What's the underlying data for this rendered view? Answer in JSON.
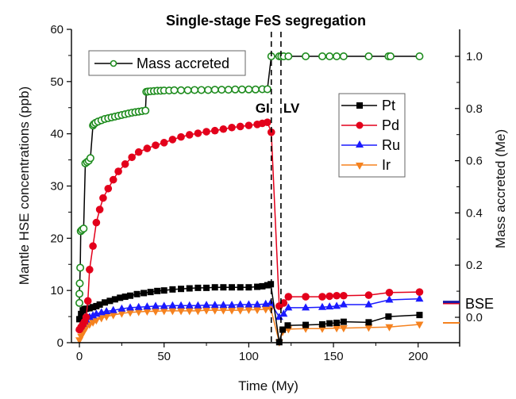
{
  "chart_data": {
    "type": "line",
    "title": "Single-stage FeS segregation",
    "xlabel": "Time (My)",
    "ylabel": "Mantle HSE concentrations (ppb)",
    "y2label": "Mass accreted (Me)",
    "xlim": [
      -4.7,
      224.5
    ],
    "ylim": [
      0,
      60
    ],
    "y2lim": [
      -0.11,
      1.1
    ],
    "xticks": [
      0,
      50,
      100,
      150,
      200
    ],
    "xminor": [
      25,
      75,
      125,
      175
    ],
    "yticks": [
      0,
      10,
      20,
      30,
      40,
      50,
      60
    ],
    "yminor": [
      5,
      15,
      25,
      35,
      45,
      55
    ],
    "y2ticks": [
      "0.0",
      "0.2",
      "0.4",
      "0.6",
      "0.8",
      "1.0"
    ],
    "y2tick_values": [
      0,
      0.2,
      0.4,
      0.6,
      0.8,
      1.0
    ],
    "y2minor": [
      0.1,
      0.3,
      0.5,
      0.7,
      0.9
    ],
    "grid": false,
    "vlines": [
      {
        "x": 113.3,
        "label": "GI"
      },
      {
        "x": 119.0,
        "label": "LV"
      }
    ],
    "legend_mass": {
      "label": "Mass accreted",
      "placement": "top-left"
    },
    "legend_hse": {
      "placement": "right",
      "entries": [
        "Pt",
        "Pd",
        "Ru",
        "Ir"
      ]
    },
    "bse": {
      "label": "BSE",
      "markers": [
        {
          "element": "Pd",
          "value": 7.6,
          "color": "#e3001b"
        },
        {
          "element": "Ru",
          "value": 7.8,
          "color": "#1a1aa6"
        },
        {
          "element": "Ir",
          "value": 3.8,
          "color": "#f5821f"
        }
      ]
    },
    "series": [
      {
        "name": "Mass accreted",
        "axis": "right",
        "color": "#1e8c1e",
        "line_color": "#000000",
        "marker": "open-circle",
        "x": [
          0,
          0,
          0.2,
          0.5,
          0.8,
          1.5,
          2.5,
          3.5,
          4.5,
          5.5,
          6.5,
          8,
          8.5,
          9.5,
          11,
          13,
          15,
          17,
          19,
          21,
          23,
          25,
          27,
          29,
          31,
          33,
          35,
          37,
          39,
          39.5,
          40.5,
          42,
          44,
          46,
          48,
          50,
          53,
          56,
          60,
          64,
          68,
          72,
          76,
          80,
          84,
          88,
          92,
          96,
          100,
          104,
          108,
          111,
          113.3,
          118,
          119.2,
          120.6,
          123.4,
          133.6,
          143.4,
          147.7,
          151.9,
          156,
          170.8,
          182.5,
          183.7,
          200.8
        ],
        "values": [
          0.055,
          0.09,
          0.13,
          0.19,
          0.33,
          0.335,
          0.34,
          0.59,
          0.595,
          0.6,
          0.61,
          0.735,
          0.74,
          0.745,
          0.75,
          0.755,
          0.76,
          0.763,
          0.766,
          0.769,
          0.772,
          0.775,
          0.778,
          0.781,
          0.784,
          0.786,
          0.788,
          0.79,
          0.792,
          0.864,
          0.865,
          0.866,
          0.867,
          0.868,
          0.868,
          0.869,
          0.869,
          0.87,
          0.87,
          0.87,
          0.871,
          0.871,
          0.871,
          0.872,
          0.872,
          0.872,
          0.873,
          0.873,
          0.873,
          0.873,
          0.874,
          0.874,
          1.0,
          1.0,
          1.0,
          1.0,
          1.0,
          1.0,
          1.0,
          1.0,
          1.0,
          1.0,
          1.0,
          1.0,
          1.0,
          1.0
        ]
      },
      {
        "name": "Pt",
        "axis": "left",
        "color": "#000000",
        "marker": "square",
        "x": [
          0,
          1,
          2,
          3,
          4,
          6,
          8,
          10,
          12,
          15,
          18,
          21,
          24,
          27,
          30,
          34,
          38,
          42,
          46,
          50,
          55,
          60,
          65,
          70,
          75,
          80,
          85,
          90,
          95,
          100,
          105,
          108,
          111,
          113,
          118,
          120,
          123,
          133.6,
          143.4,
          147.7,
          151.9,
          156,
          170.8,
          182.5,
          200.8
        ],
        "values": [
          4.5,
          5.5,
          6.2,
          6.4,
          6.5,
          6.6,
          6.8,
          7.0,
          7.3,
          7.7,
          8.0,
          8.3,
          8.6,
          8.8,
          9.0,
          9.3,
          9.5,
          9.7,
          9.9,
          10.0,
          10.2,
          10.3,
          10.4,
          10.5,
          10.5,
          10.6,
          10.6,
          10.6,
          10.6,
          10.6,
          10.7,
          10.8,
          11.0,
          11.2,
          0.1,
          2.5,
          3.3,
          3.4,
          3.5,
          3.7,
          3.8,
          4.0,
          3.9,
          5.0,
          5.3
        ]
      },
      {
        "name": "Pd",
        "axis": "left",
        "color": "#e3001b",
        "marker": "circle",
        "x": [
          0,
          1,
          2,
          3,
          4,
          5,
          6,
          8,
          10,
          12,
          14,
          17,
          20,
          23,
          27,
          31,
          35,
          40,
          45,
          50,
          55,
          60,
          65,
          70,
          75,
          80,
          85,
          90,
          95,
          100,
          105,
          108,
          111,
          113.3,
          118,
          120.6,
          123.4,
          133.6,
          143.4,
          147.7,
          151.9,
          156,
          170.8,
          183,
          200.8
        ],
        "values": [
          2.5,
          3.0,
          3.5,
          4.0,
          4.9,
          8.0,
          14.0,
          18.5,
          23.0,
          25.5,
          27.7,
          29.5,
          31.2,
          32.8,
          34.2,
          35.5,
          36.5,
          37.2,
          37.8,
          38.3,
          38.9,
          39.4,
          39.8,
          40.1,
          40.4,
          40.6,
          40.9,
          41.2,
          41.4,
          41.6,
          41.8,
          42.0,
          42.2,
          40.3,
          7.0,
          7.6,
          8.8,
          8.8,
          8.8,
          8.9,
          9.0,
          9.0,
          9.1,
          9.6,
          9.7
        ]
      },
      {
        "name": "Ru",
        "axis": "left",
        "color": "#1a1aff",
        "marker": "triangle-up",
        "x": [
          0,
          1,
          2,
          3,
          4,
          6,
          8,
          10,
          13,
          16,
          20,
          25,
          30,
          35,
          40,
          45,
          50,
          55,
          60,
          65,
          70,
          75,
          80,
          85,
          90,
          95,
          100,
          105,
          110,
          113,
          118,
          120.6,
          123.4,
          133.6,
          143.4,
          147.7,
          151.9,
          156,
          170.8,
          183,
          200.8
        ],
        "values": [
          2.8,
          3.2,
          3.6,
          4.0,
          4.4,
          4.9,
          5.2,
          5.5,
          5.8,
          6.0,
          6.2,
          6.5,
          6.7,
          6.8,
          6.9,
          7.0,
          7.0,
          7.1,
          7.1,
          7.1,
          7.1,
          7.2,
          7.2,
          7.2,
          7.2,
          7.3,
          7.3,
          7.3,
          7.4,
          7.6,
          4.9,
          5.5,
          6.7,
          6.7,
          6.8,
          6.9,
          7.0,
          7.3,
          7.3,
          8.2,
          8.4
        ]
      },
      {
        "name": "Ir",
        "axis": "left",
        "color": "#f5821f",
        "marker": "triangle-down",
        "x": [
          0,
          1,
          2,
          3,
          4,
          6,
          8,
          10,
          13,
          16,
          20,
          25,
          30,
          35,
          40,
          45,
          50,
          55,
          60,
          65,
          70,
          75,
          80,
          85,
          90,
          95,
          100,
          105,
          110,
          113,
          118,
          120,
          123.4,
          133.6,
          143.4,
          151.9,
          156,
          170.8,
          183,
          200.8
        ],
        "values": [
          0.5,
          1.2,
          1.8,
          2.4,
          2.9,
          3.5,
          3.9,
          4.3,
          4.7,
          5.0,
          5.3,
          5.6,
          5.8,
          5.9,
          6.0,
          6.0,
          6.1,
          6.1,
          6.1,
          6.1,
          6.1,
          6.2,
          6.2,
          6.2,
          6.2,
          6.2,
          6.3,
          6.3,
          6.4,
          6.5,
          0.1,
          2.1,
          2.6,
          2.7,
          2.7,
          2.8,
          2.8,
          2.9,
          3.0,
          3.5
        ]
      }
    ]
  }
}
